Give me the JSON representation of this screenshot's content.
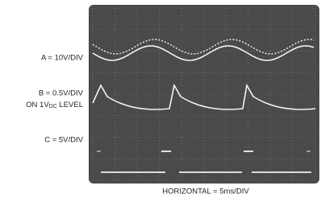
{
  "labels": {
    "a": "A = 10V/DIV",
    "b": "B = 0.5V/DIV",
    "b_level": [
      "ON 1V",
      "DC",
      " LEVEL"
    ],
    "c": "C = 5V/DIV"
  },
  "footer": "HORIZONTAL = 5ms/DIV"
}
